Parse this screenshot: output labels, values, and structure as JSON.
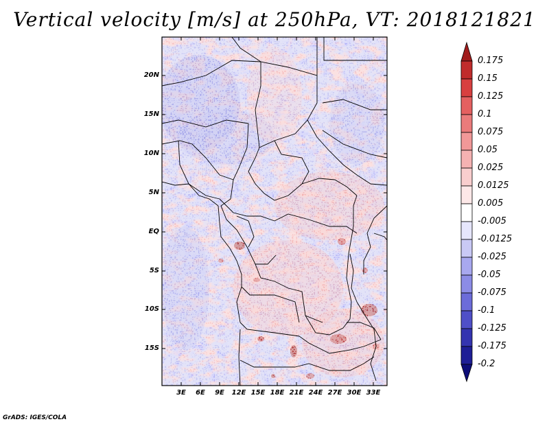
{
  "title": "Vertical velocity [m/s] at 250hPa, VT: 2018121821",
  "map": {
    "lat_labels": [
      "20N",
      "15N",
      "10N",
      "5N",
      "EQ",
      "5S",
      "10S",
      "15S"
    ],
    "lon_labels": [
      "3E",
      "6E",
      "9E",
      "12E",
      "15E",
      "18E",
      "21E",
      "24E",
      "27E",
      "30E",
      "33E"
    ]
  },
  "colorbar": {
    "labels": [
      "0.175",
      "0.15",
      "0.125",
      "0.1",
      "0.075",
      "0.05",
      "0.025",
      "0.0125",
      "0.005",
      "-0.005",
      "-0.0125",
      "-0.025",
      "-0.05",
      "-0.075",
      "-0.1",
      "-0.125",
      "-0.175",
      "-0.2"
    ],
    "colors": [
      "#a11c1c",
      "#c02c2c",
      "#d84040",
      "#e46060",
      "#ea7b7b",
      "#f19898",
      "#f5b2b2",
      "#f9cece",
      "#fde8e8",
      "#ffffff",
      "#e6e6fc",
      "#c9c9f5",
      "#a8a8ef",
      "#8c8ce6",
      "#6c6cd9",
      "#4f4fc8",
      "#3434b0",
      "#1e1e96",
      "#0d0d78"
    ]
  },
  "credit": "GrADS: IGES/COLA"
}
